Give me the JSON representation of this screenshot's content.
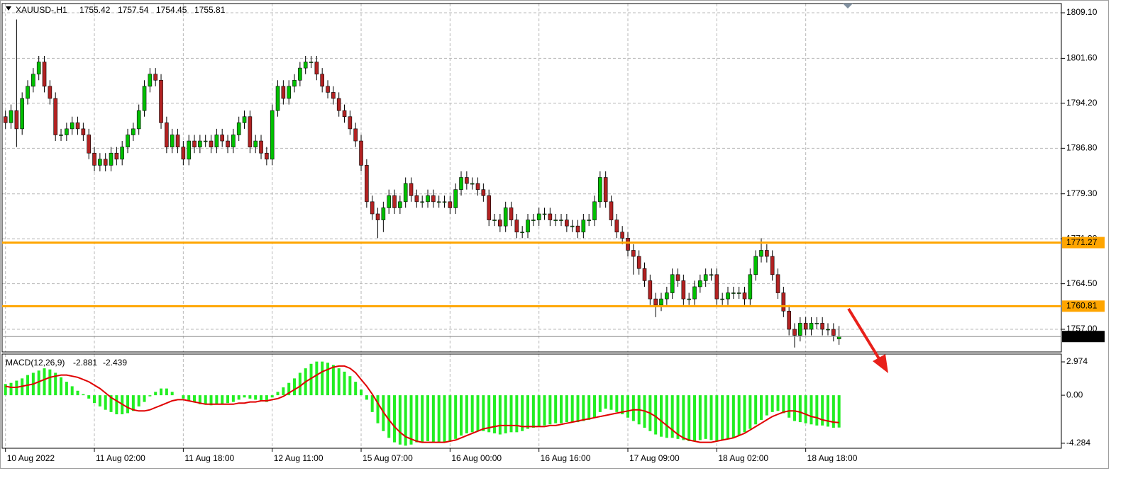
{
  "chart_data": {
    "type": "candlestick",
    "symbol": "XAUUSD-,H1",
    "up_color": "#00c000",
    "down_color": "#b22222",
    "open": [
      1792,
      1791,
      1793,
      1790,
      1795,
      1797,
      1799,
      1801,
      1797,
      1795,
      1789,
      1789,
      1790,
      1791,
      1790,
      1789,
      1786,
      1784,
      1785,
      1784,
      1786,
      1785,
      1787,
      1789,
      1790,
      1793,
      1797,
      1799,
      1798,
      1791,
      1787,
      1789,
      1787,
      1785,
      1788,
      1787,
      1788,
      1788,
      1787,
      1789,
      1788,
      1787,
      1789,
      1791,
      1792,
      1787,
      1788,
      1786,
      1785,
      1793,
      1797,
      1795,
      1797,
      1798,
      1800,
      1801,
      1801,
      1799,
      1797,
      1796,
      1795,
      1793,
      1792,
      1790,
      1788,
      1784,
      1778,
      1776,
      1775,
      1777,
      1779,
      1777,
      1778,
      1781,
      1779,
      1778,
      1778,
      1779,
      1778,
      1778,
      1778,
      1777,
      1780,
      1782,
      1781,
      1781,
      1780,
      1779,
      1775,
      1775,
      1774,
      1777,
      1775,
      1773,
      1773,
      1775,
      1775,
      1776,
      1776,
      1775,
      1775,
      1775,
      1774,
      1774,
      1773,
      1775,
      1775,
      1778,
      1782,
      1778,
      1775,
      1773,
      1772,
      1770,
      1769,
      1767,
      1765,
      1762,
      1761,
      1762,
      1763,
      1766,
      1765,
      1762,
      1762,
      1764,
      1765,
      1766,
      1766,
      1762,
      1762,
      1763,
      1763,
      1763,
      1762,
      1766,
      1769,
      1770,
      1769,
      1766,
      1763,
      1760,
      1757,
      1756,
      1758,
      1757,
      1758,
      1758,
      1757,
      1757,
      1755.42
    ],
    "high": [
      1793,
      1794,
      1808,
      1796,
      1798,
      1800,
      1802,
      1802,
      1798,
      1796,
      1790,
      1791,
      1792,
      1792,
      1791,
      1790,
      1787,
      1786,
      1786,
      1787,
      1787,
      1788,
      1790,
      1791,
      1794,
      1798,
      1800,
      1800,
      1799,
      1792,
      1790,
      1790,
      1788,
      1789,
      1789,
      1789,
      1789,
      1789,
      1790,
      1790,
      1789,
      1790,
      1792,
      1793,
      1793,
      1789,
      1789,
      1787,
      1794,
      1798,
      1798,
      1798,
      1799,
      1801,
      1802,
      1802,
      1802,
      1800,
      1798,
      1797,
      1796,
      1794,
      1793,
      1791,
      1789,
      1785,
      1779,
      1777,
      1778,
      1780,
      1780,
      1779,
      1782,
      1782,
      1780,
      1779,
      1780,
      1780,
      1779,
      1779,
      1779,
      1781,
      1783,
      1783,
      1782,
      1782,
      1781,
      1780,
      1776,
      1776,
      1778,
      1778,
      1776,
      1774,
      1776,
      1776,
      1777,
      1777,
      1777,
      1776,
      1776,
      1776,
      1775,
      1775,
      1776,
      1776,
      1779,
      1783,
      1783,
      1779,
      1776,
      1774,
      1773,
      1771,
      1770,
      1768,
      1766,
      1763,
      1763,
      1764,
      1767,
      1767,
      1766,
      1763,
      1765,
      1766,
      1767,
      1767,
      1767,
      1763,
      1764,
      1764,
      1764,
      1764,
      1767,
      1770,
      1772,
      1771,
      1770,
      1767,
      1764,
      1761,
      1758,
      1759,
      1759,
      1759,
      1759,
      1759,
      1758,
      1758,
      1757.54
    ],
    "low": [
      1790,
      1790,
      1787,
      1789,
      1794,
      1796,
      1798,
      1796,
      1794,
      1788,
      1788,
      1788,
      1789,
      1789,
      1788,
      1785,
      1783,
      1783,
      1783,
      1783,
      1784,
      1784,
      1786,
      1788,
      1789,
      1792,
      1796,
      1797,
      1790,
      1786,
      1786,
      1786,
      1784,
      1784,
      1786,
      1786,
      1787,
      1786,
      1786,
      1787,
      1786,
      1786,
      1788,
      1790,
      1786,
      1786,
      1785,
      1784,
      1784,
      1792,
      1794,
      1794,
      1796,
      1797,
      1799,
      1800,
      1798,
      1796,
      1795,
      1794,
      1792,
      1791,
      1789,
      1787,
      1783,
      1777,
      1775,
      1772,
      1773,
      1776,
      1776,
      1776,
      1777,
      1778,
      1777,
      1777,
      1777,
      1777,
      1777,
      1777,
      1776,
      1776,
      1779,
      1780,
      1780,
      1779,
      1778,
      1774,
      1774,
      1773,
      1773,
      1774,
      1772,
      1772,
      1772,
      1774,
      1774,
      1775,
      1774,
      1774,
      1774,
      1773,
      1773,
      1772,
      1772,
      1774,
      1774,
      1777,
      1777,
      1774,
      1772,
      1771,
      1769,
      1766,
      1766,
      1764,
      1761,
      1759,
      1760,
      1761,
      1762,
      1764,
      1761,
      1761,
      1761,
      1763,
      1764,
      1765,
      1761,
      1761,
      1761,
      1762,
      1762,
      1761,
      1761,
      1765,
      1768,
      1768,
      1765,
      1762,
      1759,
      1756,
      1754,
      1755,
      1756,
      1756,
      1757,
      1756,
      1756,
      1755,
      1754.45
    ],
    "close": [
      1791,
      1793,
      1790,
      1795,
      1797,
      1799,
      1801,
      1797,
      1795,
      1789,
      1789,
      1790,
      1791,
      1790,
      1789,
      1786,
      1784,
      1785,
      1784,
      1786,
      1785,
      1787,
      1789,
      1790,
      1793,
      1797,
      1799,
      1798,
      1791,
      1787,
      1789,
      1787,
      1785,
      1788,
      1787,
      1788,
      1788,
      1787,
      1789,
      1788,
      1787,
      1789,
      1791,
      1792,
      1787,
      1788,
      1786,
      1785,
      1793,
      1797,
      1795,
      1797,
      1798,
      1800,
      1801,
      1801,
      1799,
      1797,
      1796,
      1795,
      1793,
      1792,
      1790,
      1788,
      1784,
      1778,
      1776,
      1775,
      1777,
      1779,
      1777,
      1778,
      1781,
      1779,
      1778,
      1778,
      1779,
      1778,
      1778,
      1778,
      1777,
      1780,
      1782,
      1781,
      1781,
      1780,
      1779,
      1775,
      1775,
      1774,
      1777,
      1775,
      1773,
      1773,
      1775,
      1775,
      1776,
      1776,
      1775,
      1775,
      1775,
      1774,
      1774,
      1773,
      1775,
      1775,
      1778,
      1782,
      1778,
      1775,
      1773,
      1772,
      1770,
      1769,
      1767,
      1765,
      1762,
      1761,
      1762,
      1763,
      1766,
      1765,
      1762,
      1762,
      1764,
      1765,
      1766,
      1766,
      1762,
      1762,
      1763,
      1763,
      1763,
      1762,
      1766,
      1769,
      1770,
      1769,
      1766,
      1763,
      1760,
      1757,
      1756,
      1758,
      1757,
      1758,
      1758,
      1757,
      1757,
      1756,
      1755.81
    ],
    "xlim": [
      -0.6,
      190
    ],
    "xticks": [
      {
        "value": 0,
        "label": "10 Aug 2022"
      },
      {
        "value": 16,
        "label": "11 Aug 02:00"
      },
      {
        "value": 32,
        "label": "11 Aug 18:00"
      },
      {
        "value": 48,
        "label": "12 Aug 11:00"
      },
      {
        "value": 64,
        "label": "15 Aug 07:00"
      },
      {
        "value": 80,
        "label": "16 Aug 00:00"
      },
      {
        "value": 96,
        "label": "16 Aug 16:00"
      },
      {
        "value": 112,
        "label": "17 Aug 09:00"
      },
      {
        "value": 128,
        "label": "18 Aug 02:00"
      },
      {
        "value": 144,
        "label": "18 Aug 18:00"
      }
    ],
    "ylim": [
      1753.27,
      1810.62
    ],
    "yticks": [
      {
        "value": 1809.1,
        "label": "1809.10"
      },
      {
        "value": 1801.6,
        "label": "1801.60"
      },
      {
        "value": 1794.2,
        "label": "1794.20"
      },
      {
        "value": 1786.8,
        "label": "1786.80"
      },
      {
        "value": 1779.3,
        "label": "1779.30"
      },
      {
        "value": 1771.9,
        "label": "1771.90"
      },
      {
        "value": 1764.5,
        "label": "1764.50"
      },
      {
        "value": 1757,
        "label": "1757.00"
      }
    ],
    "grid": true,
    "hlines": [
      {
        "value": 1771.27,
        "color": "#ffa500"
      },
      {
        "value": 1760.81,
        "color": "#ffa500"
      }
    ],
    "macd": {
      "label": "MACD(12,26,9)",
      "hist_color": "#22ee22",
      "signal_color": "#e00000",
      "ylim": [
        -4.73,
        3.67
      ],
      "yticks": [
        2.974,
        {
          "value": 0,
          "label": "0.00"
        },
        -4.284
      ],
      "histogram": [
        1.0,
        1.1,
        1.3,
        1.5,
        1.8,
        2.0,
        2.2,
        2.4,
        2.3,
        2.0,
        1.6,
        1.2,
        0.8,
        0.4,
        0.1,
        -0.3,
        -0.7,
        -1.0,
        -1.3,
        -1.5,
        -1.7,
        -1.7,
        -1.6,
        -1.4,
        -1.0,
        -0.6,
        -0.1,
        0.3,
        0.6,
        0.6,
        0.3,
        0.0,
        -0.3,
        -0.5,
        -0.6,
        -0.8,
        -0.8,
        -0.9,
        -0.8,
        -0.8,
        -0.7,
        -0.6,
        -0.4,
        -0.2,
        -0.3,
        -0.4,
        -0.5,
        -0.6,
        -0.2,
        0.3,
        0.7,
        1.1,
        1.5,
        2.0,
        2.4,
        2.8,
        3.0,
        3.0,
        2.9,
        2.7,
        2.4,
        2.1,
        1.7,
        1.2,
        0.5,
        -0.4,
        -1.5,
        -2.5,
        -3.2,
        -3.8,
        -4.2,
        -4.4,
        -4.5,
        -4.4,
        -4.2,
        -4.2,
        -4.1,
        -4.2,
        -4.2,
        -4.2,
        -4.1,
        -3.9,
        -3.6,
        -3.4,
        -3.3,
        -3.2,
        -3.2,
        -3.3,
        -3.4,
        -3.5,
        -3.4,
        -3.3,
        -3.3,
        -3.2,
        -3.0,
        -2.9,
        -2.8,
        -2.7,
        -2.6,
        -2.5,
        -2.5,
        -2.4,
        -2.4,
        -2.4,
        -2.3,
        -2.2,
        -2.0,
        -1.5,
        -1.2,
        -1.3,
        -1.5,
        -1.7,
        -2.0,
        -2.3,
        -2.6,
        -2.9,
        -3.2,
        -3.5,
        -3.7,
        -3.8,
        -3.8,
        -3.9,
        -4.0,
        -4.1,
        -4.1,
        -4.0,
        -3.9,
        -4.0,
        -4.1,
        -4.0,
        -3.9,
        -3.8,
        -3.6,
        -3.3,
        -3.0,
        -2.6,
        -2.2,
        -1.8,
        -1.5,
        -1.4,
        -1.6,
        -2.0,
        -2.3,
        -2.4,
        -2.5,
        -2.6,
        -2.7,
        -2.7,
        -2.8,
        -2.9,
        -2.881
      ],
      "signal": [
        0.8,
        0.7,
        0.7,
        0.8,
        0.9,
        1.0,
        1.2,
        1.4,
        1.6,
        1.7,
        1.8,
        1.8,
        1.7,
        1.6,
        1.4,
        1.2,
        0.9,
        0.6,
        0.2,
        -0.2,
        -0.5,
        -0.8,
        -1.1,
        -1.3,
        -1.4,
        -1.4,
        -1.3,
        -1.1,
        -0.9,
        -0.7,
        -0.5,
        -0.4,
        -0.4,
        -0.5,
        -0.6,
        -0.7,
        -0.8,
        -0.8,
        -0.8,
        -0.8,
        -0.8,
        -0.8,
        -0.7,
        -0.7,
        -0.6,
        -0.6,
        -0.5,
        -0.5,
        -0.4,
        -0.3,
        -0.1,
        0.2,
        0.5,
        0.8,
        1.2,
        1.5,
        1.8,
        2.1,
        2.3,
        2.5,
        2.6,
        2.6,
        2.4,
        2.0,
        1.4,
        0.8,
        0.1,
        -0.7,
        -1.5,
        -2.2,
        -2.8,
        -3.3,
        -3.7,
        -3.9,
        -4.1,
        -4.2,
        -4.2,
        -4.2,
        -4.2,
        -4.2,
        -4.1,
        -4.0,
        -3.8,
        -3.6,
        -3.4,
        -3.2,
        -3.0,
        -2.9,
        -2.8,
        -2.7,
        -2.7,
        -2.7,
        -2.7,
        -2.8,
        -2.8,
        -2.8,
        -2.8,
        -2.8,
        -2.7,
        -2.7,
        -2.6,
        -2.5,
        -2.4,
        -2.3,
        -2.2,
        -2.1,
        -2.0,
        -1.9,
        -1.8,
        -1.7,
        -1.6,
        -1.5,
        -1.4,
        -1.3,
        -1.3,
        -1.4,
        -1.6,
        -1.9,
        -2.3,
        -2.7,
        -3.1,
        -3.5,
        -3.8,
        -4.0,
        -4.1,
        -4.2,
        -4.2,
        -4.2,
        -4.1,
        -4.0,
        -3.9,
        -3.8,
        -3.6,
        -3.4,
        -3.1,
        -2.8,
        -2.5,
        -2.2,
        -1.9,
        -1.7,
        -1.5,
        -1.4,
        -1.4,
        -1.5,
        -1.7,
        -1.9,
        -2.0,
        -2.2,
        -2.3,
        -2.4,
        -2.439
      ]
    }
  }
}
